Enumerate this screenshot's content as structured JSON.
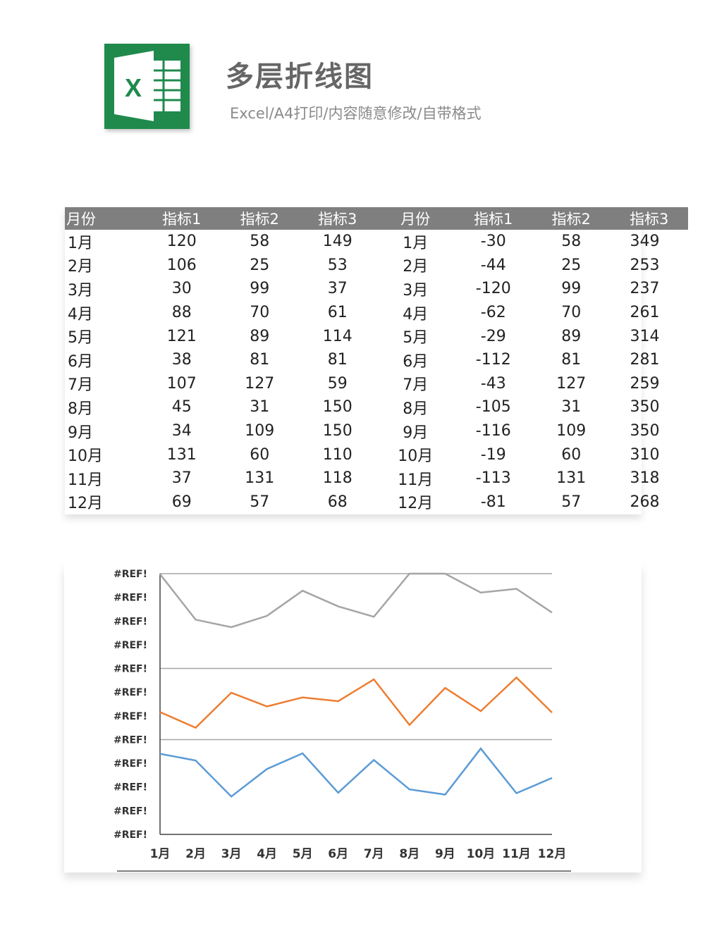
{
  "header": {
    "logo_letter": "X",
    "title": "多层折线图",
    "subtitle": "Excel/A4打印/内容随意修改/自带格式",
    "brand_color": "#1f8a4c"
  },
  "table": {
    "columns": [
      "月份",
      "指标1",
      "指标2",
      "指标3",
      "月份",
      "指标1",
      "指标2",
      "指标3"
    ],
    "rows": [
      [
        "1月",
        "120",
        "58",
        "149",
        "1月",
        "-30",
        "58",
        "349"
      ],
      [
        "2月",
        "106",
        "25",
        "53",
        "2月",
        "-44",
        "25",
        "253"
      ],
      [
        "3月",
        "30",
        "99",
        "37",
        "3月",
        "-120",
        "99",
        "237"
      ],
      [
        "4月",
        "88",
        "70",
        "61",
        "4月",
        "-62",
        "70",
        "261"
      ],
      [
        "5月",
        "121",
        "89",
        "114",
        "5月",
        "-29",
        "89",
        "314"
      ],
      [
        "6月",
        "38",
        "81",
        "81",
        "6月",
        "-112",
        "81",
        "281"
      ],
      [
        "7月",
        "107",
        "127",
        "59",
        "7月",
        "-43",
        "127",
        "259"
      ],
      [
        "8月",
        "45",
        "31",
        "150",
        "8月",
        "-105",
        "31",
        "350"
      ],
      [
        "9月",
        "34",
        "109",
        "150",
        "9月",
        "-116",
        "109",
        "350"
      ],
      [
        "10月",
        "131",
        "60",
        "110",
        "10月",
        "-19",
        "60",
        "310"
      ],
      [
        "11月",
        "37",
        "131",
        "118",
        "11月",
        "-113",
        "131",
        "318"
      ],
      [
        "12月",
        "69",
        "57",
        "68",
        "12月",
        "-81",
        "57",
        "268"
      ]
    ]
  },
  "chart_data": {
    "type": "line",
    "categories": [
      "1月",
      "2月",
      "3月",
      "4月",
      "5月",
      "6月",
      "7月",
      "8月",
      "9月",
      "10月",
      "11月",
      "12月"
    ],
    "series": [
      {
        "values": [
          -30,
          -44,
          -120,
          -62,
          -29,
          -112,
          -43,
          -105,
          -116,
          -19,
          -113,
          -81
        ],
        "color": "#5b9bd5"
      },
      {
        "values": [
          58,
          25,
          99,
          70,
          89,
          81,
          127,
          31,
          109,
          60,
          131,
          57
        ],
        "color": "#ed7d31"
      },
      {
        "values": [
          349,
          253,
          237,
          261,
          314,
          281,
          259,
          350,
          350,
          310,
          318,
          268
        ],
        "color": "#a5a5a5"
      }
    ],
    "y_tick_labels": [
      "#REF!",
      "#REF!",
      "#REF!",
      "#REF!",
      "#REF!",
      "#REF!",
      "#REF!",
      "#REF!",
      "#REF!",
      "#REF!",
      "#REF!",
      "#REF!"
    ],
    "ylim": [
      -200,
      350
    ],
    "band_boundaries": [
      0,
      150
    ],
    "grid": "band separators only",
    "legend": "none"
  }
}
